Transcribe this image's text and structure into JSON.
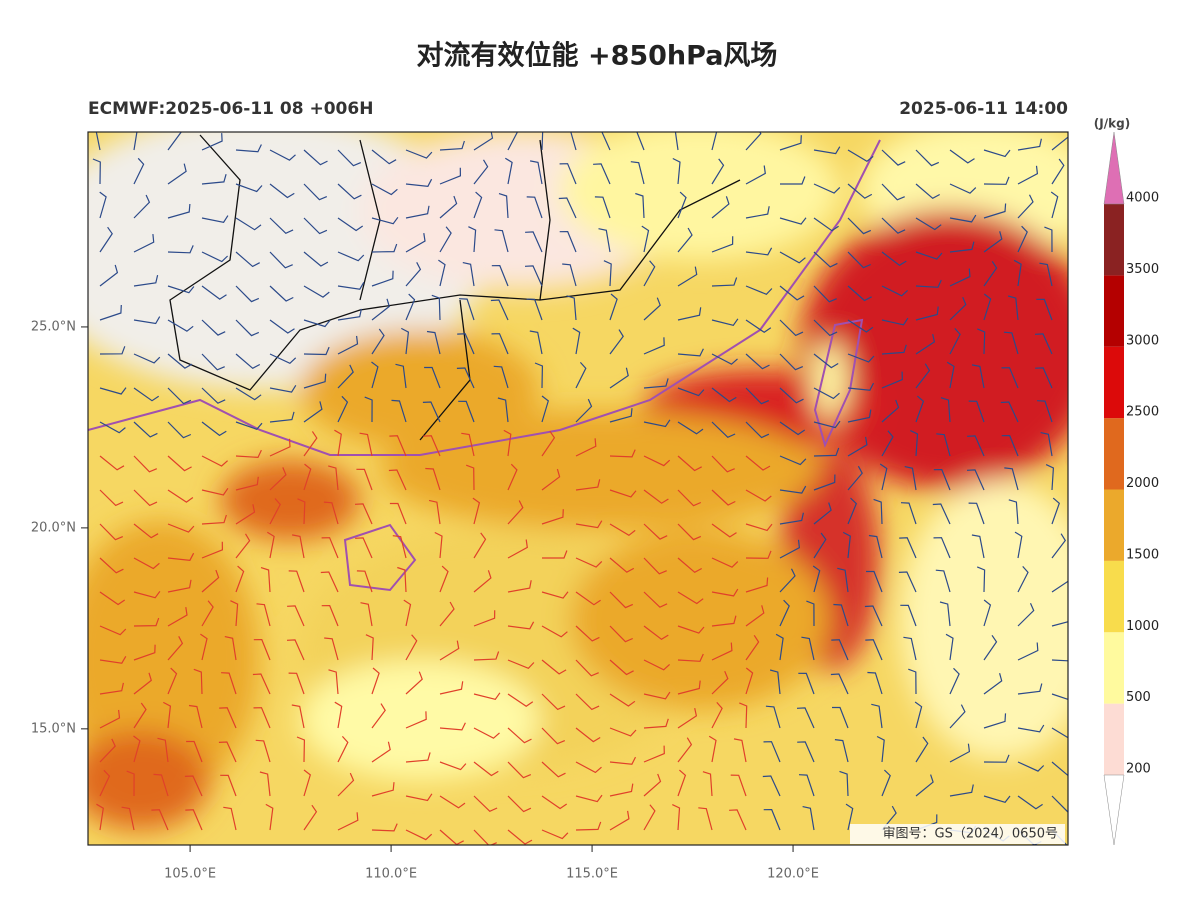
{
  "header": {
    "title": "对流有效位能 +850hPa风场",
    "left": "ECMWF:2025-06-11 08 +006H",
    "right": "2025-06-11 14:00"
  },
  "map": {
    "xlim": [
      102.46,
      126.84
    ],
    "ylim": [
      12.11,
      29.85
    ],
    "xticks": [
      {
        "value": 105,
        "label": "105.0°E"
      },
      {
        "value": 110,
        "label": "110.0°E"
      },
      {
        "value": 115,
        "label": "115.0°E"
      },
      {
        "value": 120,
        "label": "120.0°E"
      }
    ],
    "yticks": [
      {
        "value": 15,
        "label": "15.0°N"
      },
      {
        "value": 20,
        "label": "20.0°N"
      },
      {
        "value": 25,
        "label": "25.0°N"
      }
    ],
    "note": "审图号：GS（2024）0650号"
  },
  "colorbar": {
    "unit": "(J/kg)",
    "levels": [
      200,
      500,
      1000,
      1500,
      2000,
      2500,
      3000,
      3500,
      4000
    ],
    "colors": [
      "#fddcd4",
      "#fffa9e",
      "#f8dc4c",
      "#eba92c",
      "#e0691e",
      "#dc0a0a",
      "#b40000",
      "#8a2222"
    ],
    "under": "#ffffff",
    "over": "#de6fb4"
  }
}
